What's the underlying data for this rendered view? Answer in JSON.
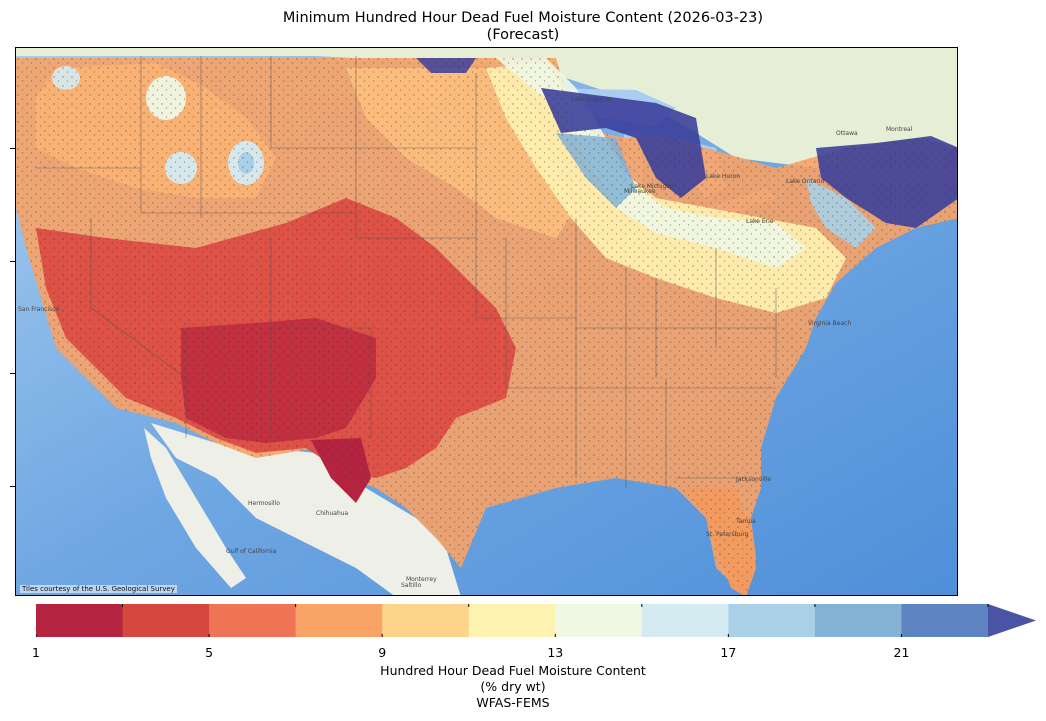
{
  "title": {
    "line1": "Minimum Hundred Hour Dead Fuel Moisture Content (2026-03-23)",
    "line2": "(Forecast)"
  },
  "map": {
    "credit": "Tiles courtesy of the U.S. Geological Survey",
    "place_labels": [
      "Hermosillo",
      "Chihuahua",
      "Monterrey",
      "Saltillo",
      "Gulf of California",
      "Lake Superior",
      "Lake Michigan",
      "Lake Huron",
      "Lake Erie",
      "Lake Ontario",
      "Milwaukee",
      "Ottawa",
      "Montreal",
      "Virginia Beach",
      "Jacksonville",
      "St. Petersburg",
      "Tampa",
      "San Francisco"
    ]
  },
  "colorbar": {
    "label_line1": "Hundred Hour Dead Fuel Moisture Content",
    "label_line2": "(% dry wt)",
    "label_line3": "WFAS-FEMS",
    "ticks": [
      "1",
      "5",
      "9",
      "13",
      "17",
      "21"
    ],
    "colors": [
      "#b42340",
      "#d6473f",
      "#ee7455",
      "#f9a466",
      "#fed38c",
      "#fff3b2",
      "#eff8e3",
      "#d5ebf2",
      "#a9d0e5",
      "#83b2d5",
      "#5e84c1"
    ],
    "extend_color": "#4b53a5",
    "range": [
      1,
      23
    ]
  }
}
